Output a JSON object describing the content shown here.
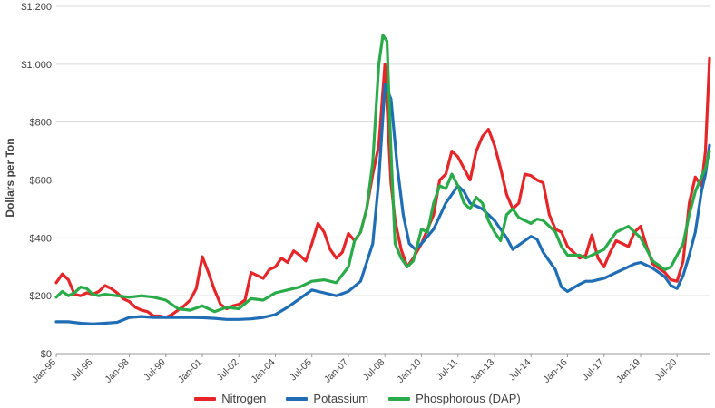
{
  "chart_data": {
    "type": "line",
    "title": "",
    "xlabel": "",
    "ylabel": "Dollars per Ton",
    "ylim": [
      0,
      1200
    ],
    "y_ticks": [
      {
        "value": 0,
        "label": "$0"
      },
      {
        "value": 200,
        "label": "$200"
      },
      {
        "value": 400,
        "label": "$400"
      },
      {
        "value": 600,
        "label": "$600"
      },
      {
        "value": 800,
        "label": "$800"
      },
      {
        "value": 1000,
        "label": "$1,000"
      },
      {
        "value": 1200,
        "label": "$1,200"
      }
    ],
    "x_ticks": [
      {
        "date": "1995-01",
        "label": "Jan-95"
      },
      {
        "date": "1996-07",
        "label": "Jul-96"
      },
      {
        "date": "1998-01",
        "label": "Jan-98"
      },
      {
        "date": "1999-07",
        "label": "Jul-99"
      },
      {
        "date": "2001-01",
        "label": "Jan-01"
      },
      {
        "date": "2002-07",
        "label": "Jul-02"
      },
      {
        "date": "2004-01",
        "label": "Jan-04"
      },
      {
        "date": "2005-07",
        "label": "Jul-05"
      },
      {
        "date": "2007-01",
        "label": "Jan-07"
      },
      {
        "date": "2008-07",
        "label": "Jul-08"
      },
      {
        "date": "2010-01",
        "label": "Jan-10"
      },
      {
        "date": "2011-07",
        "label": "Jul-11"
      },
      {
        "date": "2013-01",
        "label": "Jan-13"
      },
      {
        "date": "2014-07",
        "label": "Jul-14"
      },
      {
        "date": "2016-01",
        "label": "Jan-16"
      },
      {
        "date": "2017-07",
        "label": "Jul-17"
      },
      {
        "date": "2019-01",
        "label": "Jan-19"
      },
      {
        "date": "2020-07",
        "label": "Jul-20"
      }
    ],
    "x_range": [
      "1995-01",
      "2021-11"
    ],
    "grid": "horizontal",
    "legend_position": "bottom",
    "series": [
      {
        "name": "Nitrogen",
        "color": "#e52528",
        "points": [
          [
            "1995-01",
            245
          ],
          [
            "1995-04",
            275
          ],
          [
            "1995-07",
            255
          ],
          [
            "1995-10",
            205
          ],
          [
            "1996-01",
            200
          ],
          [
            "1996-04",
            210
          ],
          [
            "1996-07",
            205
          ],
          [
            "1996-10",
            215
          ],
          [
            "1997-01",
            235
          ],
          [
            "1997-04",
            225
          ],
          [
            "1997-07",
            210
          ],
          [
            "1997-10",
            190
          ],
          [
            "1998-01",
            180
          ],
          [
            "1998-04",
            160
          ],
          [
            "1998-07",
            150
          ],
          [
            "1998-10",
            145
          ],
          [
            "1999-01",
            130
          ],
          [
            "1999-04",
            130
          ],
          [
            "1999-07",
            125
          ],
          [
            "1999-10",
            135
          ],
          [
            "2000-01",
            150
          ],
          [
            "2000-04",
            165
          ],
          [
            "2000-07",
            185
          ],
          [
            "2000-10",
            225
          ],
          [
            "2001-01",
            335
          ],
          [
            "2001-04",
            280
          ],
          [
            "2001-07",
            220
          ],
          [
            "2001-10",
            170
          ],
          [
            "2002-01",
            155
          ],
          [
            "2002-04",
            165
          ],
          [
            "2002-07",
            170
          ],
          [
            "2002-10",
            185
          ],
          [
            "2003-01",
            280
          ],
          [
            "2003-04",
            270
          ],
          [
            "2003-07",
            260
          ],
          [
            "2003-10",
            290
          ],
          [
            "2004-01",
            300
          ],
          [
            "2004-04",
            330
          ],
          [
            "2004-07",
            315
          ],
          [
            "2004-10",
            355
          ],
          [
            "2005-01",
            340
          ],
          [
            "2005-04",
            320
          ],
          [
            "2005-07",
            380
          ],
          [
            "2005-10",
            450
          ],
          [
            "2006-01",
            420
          ],
          [
            "2006-04",
            360
          ],
          [
            "2006-07",
            330
          ],
          [
            "2006-10",
            350
          ],
          [
            "2007-01",
            415
          ],
          [
            "2007-04",
            390
          ],
          [
            "2007-07",
            420
          ],
          [
            "2007-10",
            500
          ],
          [
            "2008-01",
            620
          ],
          [
            "2008-04",
            720
          ],
          [
            "2008-07",
            1000
          ],
          [
            "2008-10",
            590
          ],
          [
            "2008-12",
            460
          ],
          [
            "2009-03",
            360
          ],
          [
            "2009-06",
            300
          ],
          [
            "2009-09",
            330
          ],
          [
            "2010-01",
            380
          ],
          [
            "2010-04",
            430
          ],
          [
            "2010-07",
            480
          ],
          [
            "2010-10",
            600
          ],
          [
            "2011-01",
            620
          ],
          [
            "2011-04",
            700
          ],
          [
            "2011-07",
            680
          ],
          [
            "2011-10",
            640
          ],
          [
            "2012-01",
            600
          ],
          [
            "2012-04",
            700
          ],
          [
            "2012-07",
            750
          ],
          [
            "2012-10",
            775
          ],
          [
            "2013-01",
            720
          ],
          [
            "2013-04",
            640
          ],
          [
            "2013-07",
            550
          ],
          [
            "2013-10",
            500
          ],
          [
            "2014-01",
            520
          ],
          [
            "2014-04",
            620
          ],
          [
            "2014-07",
            615
          ],
          [
            "2014-10",
            600
          ],
          [
            "2015-01",
            590
          ],
          [
            "2015-04",
            480
          ],
          [
            "2015-07",
            430
          ],
          [
            "2015-10",
            420
          ],
          [
            "2016-01",
            370
          ],
          [
            "2016-04",
            350
          ],
          [
            "2016-07",
            330
          ],
          [
            "2016-10",
            340
          ],
          [
            "2017-01",
            410
          ],
          [
            "2017-04",
            330
          ],
          [
            "2017-07",
            300
          ],
          [
            "2017-10",
            350
          ],
          [
            "2018-01",
            390
          ],
          [
            "2018-04",
            380
          ],
          [
            "2018-07",
            370
          ],
          [
            "2018-10",
            420
          ],
          [
            "2019-01",
            440
          ],
          [
            "2019-04",
            370
          ],
          [
            "2019-07",
            310
          ],
          [
            "2019-10",
            295
          ],
          [
            "2020-01",
            280
          ],
          [
            "2020-04",
            255
          ],
          [
            "2020-07",
            250
          ],
          [
            "2020-10",
            320
          ],
          [
            "2021-01",
            520
          ],
          [
            "2021-04",
            610
          ],
          [
            "2021-07",
            580
          ],
          [
            "2021-09",
            700
          ],
          [
            "2021-11",
            1020
          ]
        ]
      },
      {
        "name": "Potassium",
        "color": "#1f6db5",
        "points": [
          [
            "1995-01",
            110
          ],
          [
            "1995-07",
            110
          ],
          [
            "1996-01",
            105
          ],
          [
            "1996-07",
            102
          ],
          [
            "1997-01",
            105
          ],
          [
            "1997-07",
            108
          ],
          [
            "1998-01",
            125
          ],
          [
            "1998-07",
            128
          ],
          [
            "1999-01",
            125
          ],
          [
            "1999-07",
            125
          ],
          [
            "2000-01",
            125
          ],
          [
            "2000-07",
            125
          ],
          [
            "2001-01",
            124
          ],
          [
            "2001-07",
            122
          ],
          [
            "2002-01",
            118
          ],
          [
            "2002-07",
            118
          ],
          [
            "2003-01",
            120
          ],
          [
            "2003-07",
            125
          ],
          [
            "2004-01",
            135
          ],
          [
            "2004-07",
            160
          ],
          [
            "2005-01",
            190
          ],
          [
            "2005-07",
            220
          ],
          [
            "2006-01",
            210
          ],
          [
            "2006-07",
            200
          ],
          [
            "2007-01",
            215
          ],
          [
            "2007-07",
            250
          ],
          [
            "2008-01",
            380
          ],
          [
            "2008-04",
            600
          ],
          [
            "2008-07",
            930
          ],
          [
            "2008-10",
            880
          ],
          [
            "2009-01",
            650
          ],
          [
            "2009-04",
            480
          ],
          [
            "2009-07",
            380
          ],
          [
            "2009-10",
            360
          ],
          [
            "2010-01",
            380
          ],
          [
            "2010-07",
            430
          ],
          [
            "2011-01",
            520
          ],
          [
            "2011-07",
            580
          ],
          [
            "2011-10",
            560
          ],
          [
            "2012-01",
            520
          ],
          [
            "2012-07",
            500
          ],
          [
            "2012-10",
            480
          ],
          [
            "2013-01",
            460
          ],
          [
            "2013-07",
            400
          ],
          [
            "2013-10",
            360
          ],
          [
            "2014-01",
            375
          ],
          [
            "2014-07",
            405
          ],
          [
            "2014-10",
            395
          ],
          [
            "2015-01",
            350
          ],
          [
            "2015-07",
            290
          ],
          [
            "2015-10",
            230
          ],
          [
            "2016-01",
            215
          ],
          [
            "2016-07",
            240
          ],
          [
            "2016-10",
            250
          ],
          [
            "2017-01",
            250
          ],
          [
            "2017-07",
            260
          ],
          [
            "2017-10",
            270
          ],
          [
            "2018-01",
            280
          ],
          [
            "2018-07",
            300
          ],
          [
            "2018-10",
            310
          ],
          [
            "2019-01",
            315
          ],
          [
            "2019-07",
            295
          ],
          [
            "2019-10",
            280
          ],
          [
            "2020-01",
            265
          ],
          [
            "2020-04",
            235
          ],
          [
            "2020-07",
            225
          ],
          [
            "2020-10",
            270
          ],
          [
            "2021-01",
            340
          ],
          [
            "2021-04",
            420
          ],
          [
            "2021-07",
            560
          ],
          [
            "2021-09",
            620
          ],
          [
            "2021-11",
            720
          ]
        ]
      },
      {
        "name": "Phosphorous (DAP)",
        "color": "#2aab49",
        "points": [
          [
            "1995-01",
            195
          ],
          [
            "1995-04",
            215
          ],
          [
            "1995-07",
            200
          ],
          [
            "1995-10",
            210
          ],
          [
            "1996-01",
            230
          ],
          [
            "1996-04",
            225
          ],
          [
            "1996-07",
            205
          ],
          [
            "1996-10",
            200
          ],
          [
            "1997-01",
            205
          ],
          [
            "1997-07",
            200
          ],
          [
            "1998-01",
            195
          ],
          [
            "1998-07",
            200
          ],
          [
            "1999-01",
            195
          ],
          [
            "1999-07",
            185
          ],
          [
            "2000-01",
            155
          ],
          [
            "2000-07",
            150
          ],
          [
            "2001-01",
            165
          ],
          [
            "2001-07",
            145
          ],
          [
            "2002-01",
            160
          ],
          [
            "2002-07",
            155
          ],
          [
            "2003-01",
            190
          ],
          [
            "2003-07",
            185
          ],
          [
            "2004-01",
            210
          ],
          [
            "2004-07",
            220
          ],
          [
            "2005-01",
            230
          ],
          [
            "2005-07",
            250
          ],
          [
            "2006-01",
            255
          ],
          [
            "2006-07",
            245
          ],
          [
            "2007-01",
            300
          ],
          [
            "2007-04",
            390
          ],
          [
            "2007-07",
            420
          ],
          [
            "2007-10",
            500
          ],
          [
            "2008-01",
            660
          ],
          [
            "2008-04",
            1000
          ],
          [
            "2008-06",
            1100
          ],
          [
            "2008-08",
            1080
          ],
          [
            "2008-10",
            700
          ],
          [
            "2008-12",
            380
          ],
          [
            "2009-03",
            330
          ],
          [
            "2009-06",
            300
          ],
          [
            "2009-09",
            320
          ],
          [
            "2010-01",
            430
          ],
          [
            "2010-04",
            420
          ],
          [
            "2010-07",
            520
          ],
          [
            "2010-10",
            580
          ],
          [
            "2011-01",
            570
          ],
          [
            "2011-04",
            620
          ],
          [
            "2011-07",
            580
          ],
          [
            "2011-10",
            520
          ],
          [
            "2012-01",
            500
          ],
          [
            "2012-04",
            540
          ],
          [
            "2012-07",
            520
          ],
          [
            "2012-10",
            460
          ],
          [
            "2013-01",
            420
          ],
          [
            "2013-04",
            390
          ],
          [
            "2013-07",
            480
          ],
          [
            "2013-10",
            500
          ],
          [
            "2014-01",
            470
          ],
          [
            "2014-04",
            460
          ],
          [
            "2014-07",
            450
          ],
          [
            "2014-10",
            465
          ],
          [
            "2015-01",
            460
          ],
          [
            "2015-04",
            440
          ],
          [
            "2015-07",
            420
          ],
          [
            "2015-10",
            370
          ],
          [
            "2016-01",
            340
          ],
          [
            "2016-07",
            340
          ],
          [
            "2016-10",
            330
          ],
          [
            "2017-01",
            340
          ],
          [
            "2017-07",
            360
          ],
          [
            "2017-10",
            390
          ],
          [
            "2018-01",
            420
          ],
          [
            "2018-07",
            440
          ],
          [
            "2018-10",
            420
          ],
          [
            "2019-01",
            400
          ],
          [
            "2019-04",
            360
          ],
          [
            "2019-07",
            320
          ],
          [
            "2019-10",
            305
          ],
          [
            "2020-01",
            290
          ],
          [
            "2020-04",
            300
          ],
          [
            "2020-07",
            340
          ],
          [
            "2020-10",
            380
          ],
          [
            "2021-01",
            480
          ],
          [
            "2021-04",
            560
          ],
          [
            "2021-07",
            610
          ],
          [
            "2021-09",
            640
          ],
          [
            "2021-11",
            700
          ]
        ]
      }
    ]
  }
}
